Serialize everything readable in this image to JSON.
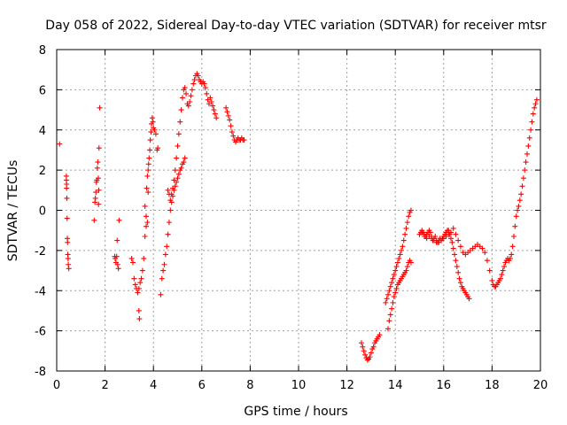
{
  "chart_data": {
    "type": "scatter",
    "title": "Day 058 of 2022, Sidereal Day-to-day VTEC variation (SDTVAR) for receiver mtsr",
    "xlabel": "GPS time / hours",
    "ylabel": "SDTVAR / TECUs",
    "xlim": [
      0,
      20
    ],
    "ylim": [
      -8,
      8
    ],
    "x_ticks": [
      "0",
      "2",
      "4",
      "6",
      "8",
      "10",
      "12",
      "14",
      "16",
      "18",
      "20"
    ],
    "y_ticks": [
      "-8",
      "-6",
      "-4",
      "-2",
      "0",
      "2",
      "4",
      "6",
      "8"
    ],
    "grid": true,
    "marker": "+",
    "color": "#ff0000",
    "series": [
      {
        "name": "mtsr",
        "points": [
          [
            0.12,
            3.3
          ],
          [
            0.4,
            1.7
          ],
          [
            0.4,
            1.5
          ],
          [
            0.41,
            1.3
          ],
          [
            0.41,
            1.1
          ],
          [
            0.42,
            0.6
          ],
          [
            0.43,
            -0.4
          ],
          [
            0.44,
            -1.4
          ],
          [
            0.45,
            -1.6
          ],
          [
            0.46,
            -2.2
          ],
          [
            0.47,
            -2.4
          ],
          [
            0.48,
            -2.7
          ],
          [
            0.5,
            -2.9
          ],
          [
            1.55,
            -0.5
          ],
          [
            1.58,
            0.4
          ],
          [
            1.6,
            0.6
          ],
          [
            1.62,
            0.9
          ],
          [
            1.64,
            1.4
          ],
          [
            1.66,
            1.5
          ],
          [
            1.68,
            2.1
          ],
          [
            1.7,
            2.4
          ],
          [
            1.72,
            1.6
          ],
          [
            1.73,
            0.3
          ],
          [
            1.74,
            1.0
          ],
          [
            1.75,
            3.1
          ],
          [
            1.78,
            5.1
          ],
          [
            2.4,
            -2.3
          ],
          [
            2.42,
            -2.4
          ],
          [
            2.45,
            -2.6
          ],
          [
            2.48,
            -2.3
          ],
          [
            2.5,
            -1.5
          ],
          [
            2.52,
            -2.7
          ],
          [
            2.55,
            -2.9
          ],
          [
            2.58,
            -0.5
          ],
          [
            3.1,
            -2.4
          ],
          [
            3.15,
            -2.6
          ],
          [
            3.2,
            -3.4
          ],
          [
            3.25,
            -3.7
          ],
          [
            3.3,
            -3.9
          ],
          [
            3.35,
            -4.1
          ],
          [
            3.4,
            -3.9
          ],
          [
            3.45,
            -3.6
          ],
          [
            3.5,
            -3.4
          ],
          [
            3.55,
            -3.0
          ],
          [
            3.6,
            -2.4
          ],
          [
            3.4,
            -5.0
          ],
          [
            3.42,
            -5.4
          ],
          [
            3.65,
            -1.3
          ],
          [
            3.7,
            -0.8
          ],
          [
            3.72,
            1.1
          ],
          [
            3.75,
            1.7
          ],
          [
            3.78,
            2.0
          ],
          [
            3.8,
            2.3
          ],
          [
            3.82,
            2.6
          ],
          [
            3.85,
            3.0
          ],
          [
            3.87,
            3.5
          ],
          [
            3.9,
            3.9
          ],
          [
            3.92,
            4.3
          ],
          [
            3.95,
            4.6
          ],
          [
            3.98,
            4.4
          ],
          [
            4.0,
            4.1
          ],
          [
            4.05,
            4.0
          ],
          [
            4.1,
            3.8
          ],
          [
            4.15,
            3.0
          ],
          [
            4.18,
            3.1
          ],
          [
            3.65,
            0.2
          ],
          [
            3.7,
            -0.3
          ],
          [
            3.75,
            -0.6
          ],
          [
            3.78,
            0.9
          ],
          [
            4.3,
            -4.2
          ],
          [
            4.35,
            -3.4
          ],
          [
            4.4,
            -3.0
          ],
          [
            4.45,
            -2.7
          ],
          [
            4.5,
            -2.2
          ],
          [
            4.55,
            -1.8
          ],
          [
            4.6,
            -1.2
          ],
          [
            4.65,
            -0.6
          ],
          [
            4.7,
            0.0
          ],
          [
            4.75,
            0.4
          ],
          [
            4.8,
            0.7
          ],
          [
            4.85,
            1.0
          ],
          [
            4.9,
            1.2
          ],
          [
            4.95,
            1.4
          ],
          [
            5.0,
            1.6
          ],
          [
            5.05,
            1.8
          ],
          [
            5.1,
            2.0
          ],
          [
            5.15,
            2.1
          ],
          [
            5.2,
            2.3
          ],
          [
            5.25,
            2.4
          ],
          [
            5.3,
            2.6
          ],
          [
            4.6,
            1.0
          ],
          [
            4.65,
            0.8
          ],
          [
            4.7,
            0.5
          ],
          [
            4.75,
            0.8
          ],
          [
            4.8,
            1.1
          ],
          [
            4.85,
            1.5
          ],
          [
            4.9,
            2.0
          ],
          [
            4.95,
            2.6
          ],
          [
            5.0,
            3.2
          ],
          [
            5.05,
            3.8
          ],
          [
            5.1,
            4.4
          ],
          [
            5.15,
            5.0
          ],
          [
            5.2,
            5.6
          ],
          [
            5.25,
            6.0
          ],
          [
            5.3,
            6.1
          ],
          [
            5.35,
            5.8
          ],
          [
            5.4,
            5.3
          ],
          [
            5.45,
            5.2
          ],
          [
            5.5,
            5.4
          ],
          [
            5.55,
            5.7
          ],
          [
            5.6,
            6.0
          ],
          [
            5.65,
            6.3
          ],
          [
            5.7,
            6.5
          ],
          [
            5.75,
            6.7
          ],
          [
            5.8,
            6.8
          ],
          [
            5.85,
            6.7
          ],
          [
            5.9,
            6.5
          ],
          [
            5.95,
            6.4
          ],
          [
            6.0,
            6.3
          ],
          [
            6.05,
            6.4
          ],
          [
            6.1,
            6.3
          ],
          [
            6.15,
            6.1
          ],
          [
            6.2,
            5.8
          ],
          [
            6.25,
            5.5
          ],
          [
            6.3,
            5.3
          ],
          [
            6.35,
            5.6
          ],
          [
            6.4,
            5.4
          ],
          [
            6.45,
            5.2
          ],
          [
            6.5,
            5.0
          ],
          [
            6.55,
            4.8
          ],
          [
            6.6,
            4.6
          ],
          [
            7.0,
            5.1
          ],
          [
            7.05,
            4.9
          ],
          [
            7.1,
            4.7
          ],
          [
            7.15,
            4.5
          ],
          [
            7.2,
            4.2
          ],
          [
            7.25,
            3.9
          ],
          [
            7.3,
            3.7
          ],
          [
            7.35,
            3.5
          ],
          [
            7.4,
            3.4
          ],
          [
            7.45,
            3.5
          ],
          [
            7.5,
            3.6
          ],
          [
            7.55,
            3.5
          ],
          [
            7.6,
            3.5
          ],
          [
            7.65,
            3.6
          ],
          [
            7.7,
            3.5
          ],
          [
            7.75,
            3.5
          ],
          [
            12.6,
            -6.6
          ],
          [
            12.65,
            -6.8
          ],
          [
            12.7,
            -7.0
          ],
          [
            12.75,
            -7.2
          ],
          [
            12.8,
            -7.35
          ],
          [
            12.85,
            -7.45
          ],
          [
            12.9,
            -7.4
          ],
          [
            12.95,
            -7.3
          ],
          [
            13.0,
            -7.1
          ],
          [
            13.05,
            -6.9
          ],
          [
            13.1,
            -6.8
          ],
          [
            13.15,
            -6.6
          ],
          [
            13.2,
            -6.5
          ],
          [
            13.25,
            -6.4
          ],
          [
            13.3,
            -6.3
          ],
          [
            13.35,
            -6.2
          ],
          [
            13.6,
            -4.6
          ],
          [
            13.65,
            -4.4
          ],
          [
            13.7,
            -4.2
          ],
          [
            13.75,
            -4.0
          ],
          [
            13.8,
            -3.8
          ],
          [
            13.85,
            -3.6
          ],
          [
            13.9,
            -3.4
          ],
          [
            13.95,
            -3.2
          ],
          [
            14.0,
            -3.0
          ],
          [
            14.05,
            -2.8
          ],
          [
            14.1,
            -2.6
          ],
          [
            14.15,
            -2.4
          ],
          [
            14.2,
            -2.2
          ],
          [
            14.25,
            -2.0
          ],
          [
            14.3,
            -1.8
          ],
          [
            14.35,
            -1.5
          ],
          [
            14.4,
            -1.2
          ],
          [
            14.45,
            -0.9
          ],
          [
            14.5,
            -0.6
          ],
          [
            14.55,
            -0.3
          ],
          [
            14.6,
            -0.1
          ],
          [
            14.65,
            0.0
          ],
          [
            13.7,
            -5.9
          ],
          [
            13.75,
            -5.5
          ],
          [
            13.8,
            -5.2
          ],
          [
            13.85,
            -4.9
          ],
          [
            13.9,
            -4.6
          ],
          [
            13.95,
            -4.3
          ],
          [
            14.0,
            -4.1
          ],
          [
            14.05,
            -3.9
          ],
          [
            14.1,
            -3.7
          ],
          [
            14.15,
            -3.6
          ],
          [
            14.2,
            -3.5
          ],
          [
            14.25,
            -3.4
          ],
          [
            14.3,
            -3.3
          ],
          [
            14.35,
            -3.2
          ],
          [
            14.4,
            -3.1
          ],
          [
            14.45,
            -3.0
          ],
          [
            14.5,
            -2.8
          ],
          [
            14.55,
            -2.6
          ],
          [
            14.6,
            -2.5
          ],
          [
            14.65,
            -2.6
          ],
          [
            15.0,
            -1.2
          ],
          [
            15.05,
            -1.1
          ],
          [
            15.1,
            -1.0
          ],
          [
            15.15,
            -1.1
          ],
          [
            15.2,
            -1.2
          ],
          [
            15.25,
            -1.3
          ],
          [
            15.3,
            -1.2
          ],
          [
            15.35,
            -1.1
          ],
          [
            15.4,
            -1.0
          ],
          [
            15.45,
            -1.1
          ],
          [
            15.5,
            -1.3
          ],
          [
            15.55,
            -1.5
          ],
          [
            15.6,
            -1.4
          ],
          [
            15.65,
            -1.3
          ],
          [
            15.7,
            -1.5
          ],
          [
            15.75,
            -1.6
          ],
          [
            15.8,
            -1.5
          ],
          [
            15.85,
            -1.4
          ],
          [
            15.9,
            -1.5
          ],
          [
            15.95,
            -1.4
          ],
          [
            16.0,
            -1.3
          ],
          [
            16.05,
            -1.2
          ],
          [
            16.1,
            -1.1
          ],
          [
            16.15,
            -1.0
          ],
          [
            16.2,
            -1.0
          ],
          [
            16.25,
            -1.2
          ],
          [
            16.3,
            -1.4
          ],
          [
            16.35,
            -1.6
          ],
          [
            16.4,
            -1.9
          ],
          [
            16.45,
            -2.2
          ],
          [
            16.5,
            -2.5
          ],
          [
            16.55,
            -2.8
          ],
          [
            16.6,
            -3.1
          ],
          [
            16.65,
            -3.4
          ],
          [
            16.7,
            -3.6
          ],
          [
            16.75,
            -3.8
          ],
          [
            16.8,
            -3.9
          ],
          [
            16.85,
            -4.0
          ],
          [
            16.9,
            -4.1
          ],
          [
            16.95,
            -4.2
          ],
          [
            17.0,
            -4.3
          ],
          [
            17.05,
            -4.4
          ],
          [
            15.1,
            -1.1
          ],
          [
            15.2,
            -1.3
          ],
          [
            15.3,
            -1.4
          ],
          [
            15.4,
            -1.3
          ],
          [
            15.5,
            -1.4
          ],
          [
            15.6,
            -1.5
          ],
          [
            15.7,
            -1.6
          ],
          [
            15.8,
            -1.6
          ],
          [
            15.9,
            -1.5
          ],
          [
            16.0,
            -1.4
          ],
          [
            16.1,
            -1.3
          ],
          [
            16.2,
            -1.2
          ],
          [
            16.3,
            -1.1
          ],
          [
            16.4,
            -0.9
          ],
          [
            16.5,
            -1.2
          ],
          [
            16.6,
            -1.5
          ],
          [
            16.7,
            -1.8
          ],
          [
            16.8,
            -2.1
          ],
          [
            16.9,
            -2.2
          ],
          [
            17.0,
            -2.1
          ],
          [
            17.1,
            -2.0
          ],
          [
            17.2,
            -1.9
          ],
          [
            17.3,
            -1.8
          ],
          [
            17.4,
            -1.7
          ],
          [
            17.5,
            -1.8
          ],
          [
            17.6,
            -1.9
          ],
          [
            17.7,
            -2.1
          ],
          [
            17.8,
            -2.5
          ],
          [
            17.9,
            -3.0
          ],
          [
            18.0,
            -3.5
          ],
          [
            18.05,
            -3.7
          ],
          [
            18.1,
            -3.8
          ],
          [
            18.15,
            -3.8
          ],
          [
            18.2,
            -3.7
          ],
          [
            18.25,
            -3.6
          ],
          [
            18.3,
            -3.5
          ],
          [
            18.35,
            -3.4
          ],
          [
            18.4,
            -3.2
          ],
          [
            18.45,
            -3.0
          ],
          [
            18.5,
            -2.8
          ],
          [
            18.55,
            -2.6
          ],
          [
            18.6,
            -2.5
          ],
          [
            18.65,
            -2.4
          ],
          [
            18.7,
            -2.5
          ],
          [
            18.75,
            -2.4
          ],
          [
            18.8,
            -2.2
          ],
          [
            18.85,
            -1.8
          ],
          [
            18.9,
            -1.3
          ],
          [
            18.95,
            -0.8
          ],
          [
            19.0,
            -0.3
          ],
          [
            19.05,
            0.0
          ],
          [
            19.1,
            0.2
          ],
          [
            19.15,
            0.5
          ],
          [
            19.2,
            0.8
          ],
          [
            19.25,
            1.2
          ],
          [
            19.3,
            1.6
          ],
          [
            19.35,
            2.0
          ],
          [
            19.4,
            2.4
          ],
          [
            19.45,
            2.8
          ],
          [
            19.5,
            3.2
          ],
          [
            19.55,
            3.6
          ],
          [
            19.6,
            4.0
          ],
          [
            19.65,
            4.4
          ],
          [
            19.7,
            4.8
          ],
          [
            19.75,
            5.1
          ],
          [
            19.8,
            5.3
          ],
          [
            19.85,
            5.5
          ]
        ]
      }
    ]
  }
}
